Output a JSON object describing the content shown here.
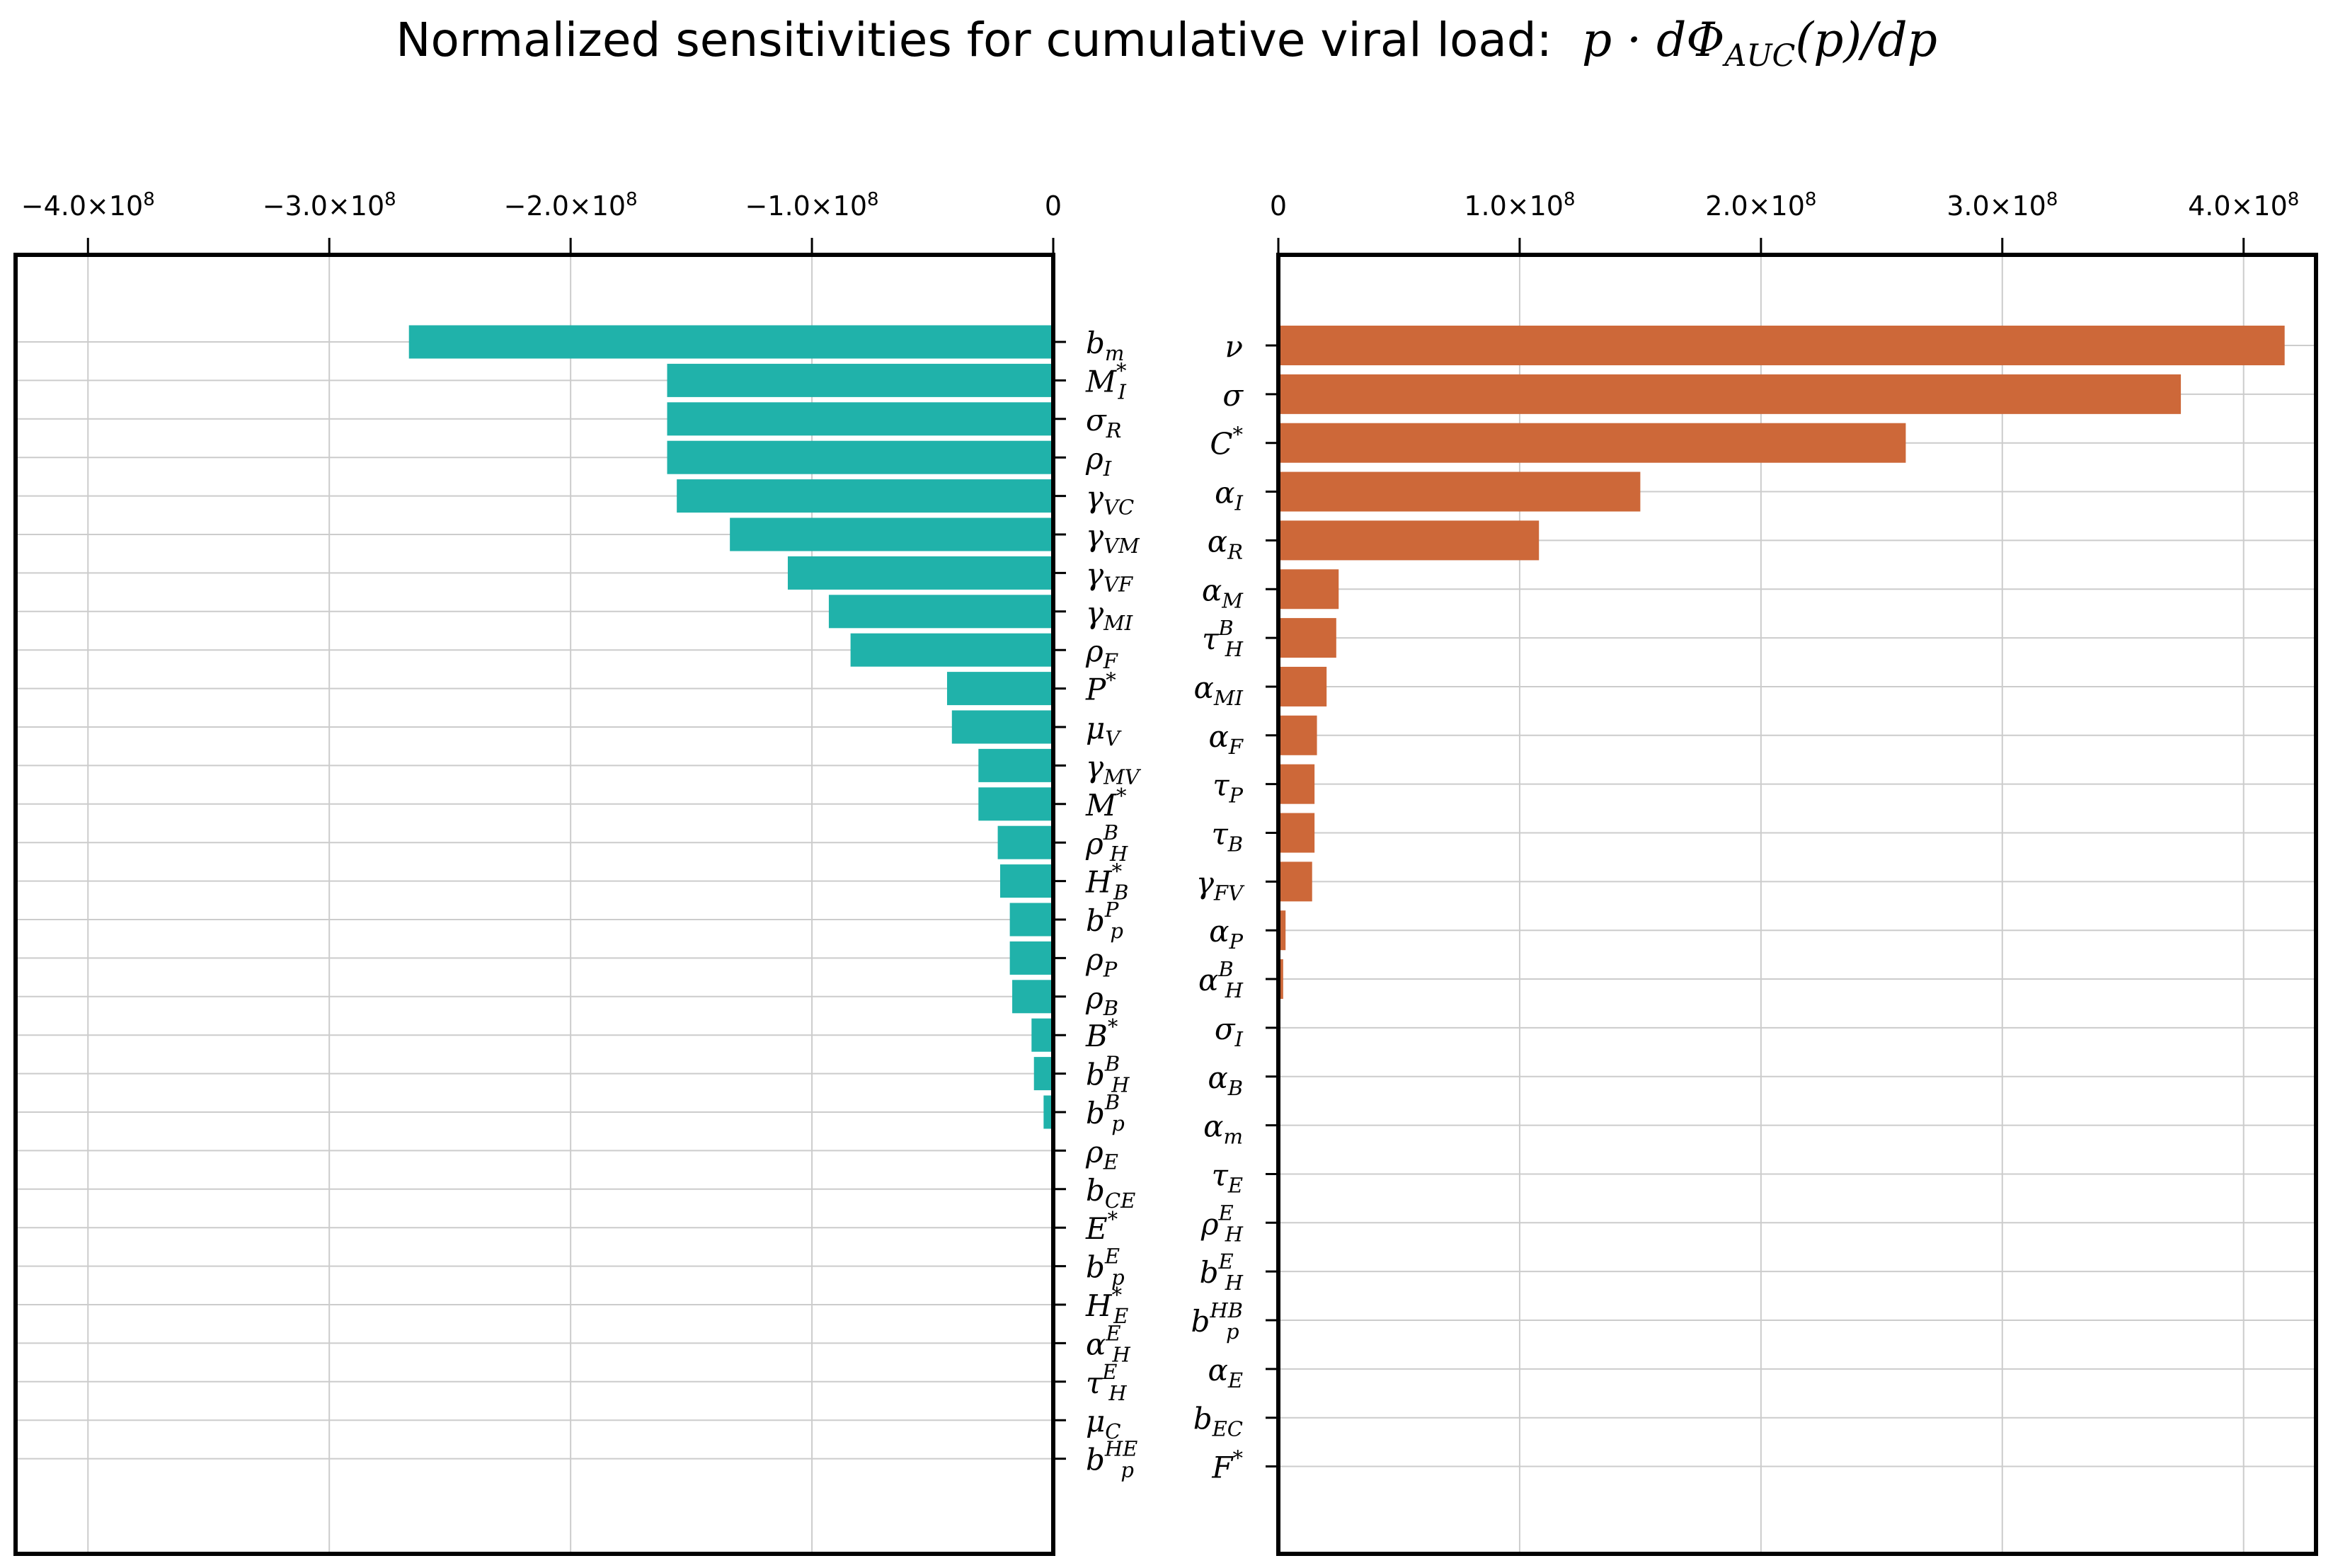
{
  "title": {
    "prefix": "Normalized sensitivities for cumulative viral load:",
    "formula_a": "p · dΦ",
    "formula_sub": "AUC",
    "formula_b": "(p)/dp"
  },
  "colors": {
    "left_bars": "#20b2aa",
    "right_bars": "#cd6839",
    "grid": "#cccccc",
    "axes": "#000000"
  },
  "chart_data": [
    {
      "type": "bar",
      "orientation": "horizontal",
      "title": "",
      "xlim": [
        -430000000,
        0
      ],
      "xticks": [
        {
          "value": -400000000,
          "label": "−4.0×10",
          "exp": "8"
        },
        {
          "value": -300000000,
          "label": "−3.0×10",
          "exp": "8"
        },
        {
          "value": -200000000,
          "label": "−2.0×10",
          "exp": "8"
        },
        {
          "value": -100000000,
          "label": "−1.0×10",
          "exp": "8"
        },
        {
          "value": 0,
          "label": "0",
          "exp": ""
        }
      ],
      "categories": [
        {
          "base": "b",
          "sub": "m",
          "sup": ""
        },
        {
          "base": "M",
          "sub": "I",
          "sup": "*"
        },
        {
          "base": "σ",
          "sub": "R",
          "sup": ""
        },
        {
          "base": "ρ",
          "sub": "I",
          "sup": ""
        },
        {
          "base": "γ",
          "sub": "VC",
          "sup": ""
        },
        {
          "base": "γ",
          "sub": "VM",
          "sup": ""
        },
        {
          "base": "γ",
          "sub": "VF",
          "sup": ""
        },
        {
          "base": "γ",
          "sub": "MI",
          "sup": ""
        },
        {
          "base": "ρ",
          "sub": "F",
          "sup": ""
        },
        {
          "base": "P",
          "sub": "",
          "sup": "*"
        },
        {
          "base": "μ",
          "sub": "V",
          "sup": ""
        },
        {
          "base": "γ",
          "sub": "MV",
          "sup": ""
        },
        {
          "base": "M",
          "sub": "",
          "sup": "*"
        },
        {
          "base": "ρ",
          "sub": "H",
          "sup": "B"
        },
        {
          "base": "H",
          "sub": "B",
          "sup": "*"
        },
        {
          "base": "b",
          "sub": "p",
          "sup": "P"
        },
        {
          "base": "ρ",
          "sub": "P",
          "sup": ""
        },
        {
          "base": "ρ",
          "sub": "B",
          "sup": ""
        },
        {
          "base": "B",
          "sub": "",
          "sup": "*"
        },
        {
          "base": "b",
          "sub": "H",
          "sup": "B"
        },
        {
          "base": "b",
          "sub": "p",
          "sup": "B"
        },
        {
          "base": "ρ",
          "sub": "E",
          "sup": ""
        },
        {
          "base": "b",
          "sub": "CE",
          "sup": ""
        },
        {
          "base": "E",
          "sub": "",
          "sup": "*"
        },
        {
          "base": "b",
          "sub": "p",
          "sup": "E"
        },
        {
          "base": "H",
          "sub": "E",
          "sup": "*"
        },
        {
          "base": "α",
          "sub": "H",
          "sup": "E"
        },
        {
          "base": "τ",
          "sub": "H",
          "sup": "E"
        },
        {
          "base": "μ",
          "sub": "C",
          "sup": ""
        },
        {
          "base": "b",
          "sub": "p",
          "sup": "HE"
        }
      ],
      "values": [
        -267000000,
        -160000000,
        -160000000,
        -160000000,
        -156000000,
        -134000000,
        -110000000,
        -93000000,
        -84000000,
        -44000000,
        -42000000,
        -31000000,
        -31000000,
        -23000000,
        -22000000,
        -18000000,
        -18000000,
        -17000000,
        -9000000,
        -8000000,
        -4000000,
        0,
        0,
        0,
        0,
        0,
        0,
        0,
        0,
        0
      ]
    },
    {
      "type": "bar",
      "orientation": "horizontal",
      "title": "",
      "xlim": [
        0,
        430000000
      ],
      "xticks": [
        {
          "value": 0,
          "label": "0",
          "exp": ""
        },
        {
          "value": 100000000,
          "label": "1.0×10",
          "exp": "8"
        },
        {
          "value": 200000000,
          "label": "2.0×10",
          "exp": "8"
        },
        {
          "value": 300000000,
          "label": "3.0×10",
          "exp": "8"
        },
        {
          "value": 400000000,
          "label": "4.0×10",
          "exp": "8"
        }
      ],
      "categories": [
        {
          "base": "ν",
          "sub": "",
          "sup": ""
        },
        {
          "base": "σ",
          "sub": "",
          "sup": ""
        },
        {
          "base": "C",
          "sub": "",
          "sup": "*"
        },
        {
          "base": "α",
          "sub": "I",
          "sup": ""
        },
        {
          "base": "α",
          "sub": "R",
          "sup": ""
        },
        {
          "base": "α",
          "sub": "M",
          "sup": ""
        },
        {
          "base": "τ",
          "sub": "H",
          "sup": "B"
        },
        {
          "base": "α",
          "sub": "MI",
          "sup": ""
        },
        {
          "base": "α",
          "sub": "F",
          "sup": ""
        },
        {
          "base": "τ",
          "sub": "P",
          "sup": ""
        },
        {
          "base": "τ",
          "sub": "B",
          "sup": ""
        },
        {
          "base": "γ",
          "sub": "FV",
          "sup": ""
        },
        {
          "base": "α",
          "sub": "P",
          "sup": ""
        },
        {
          "base": "α",
          "sub": "H",
          "sup": "B"
        },
        {
          "base": "σ",
          "sub": "I",
          "sup": ""
        },
        {
          "base": "α",
          "sub": "B",
          "sup": ""
        },
        {
          "base": "α",
          "sub": "m",
          "sup": ""
        },
        {
          "base": "τ",
          "sub": "E",
          "sup": ""
        },
        {
          "base": "ρ",
          "sub": "H",
          "sup": "E"
        },
        {
          "base": "b",
          "sub": "H",
          "sup": "E"
        },
        {
          "base": "b",
          "sub": "p",
          "sup": "HB"
        },
        {
          "base": "α",
          "sub": "E",
          "sup": ""
        },
        {
          "base": "b",
          "sub": "EC",
          "sup": ""
        },
        {
          "base": "F",
          "sub": "",
          "sup": "*"
        }
      ],
      "values": [
        417000000,
        374000000,
        260000000,
        150000000,
        108000000,
        25000000,
        24000000,
        20000000,
        16000000,
        15000000,
        15000000,
        14000000,
        3000000,
        2000000,
        0,
        0,
        0,
        0,
        0,
        0,
        0,
        0,
        0,
        0
      ]
    }
  ]
}
